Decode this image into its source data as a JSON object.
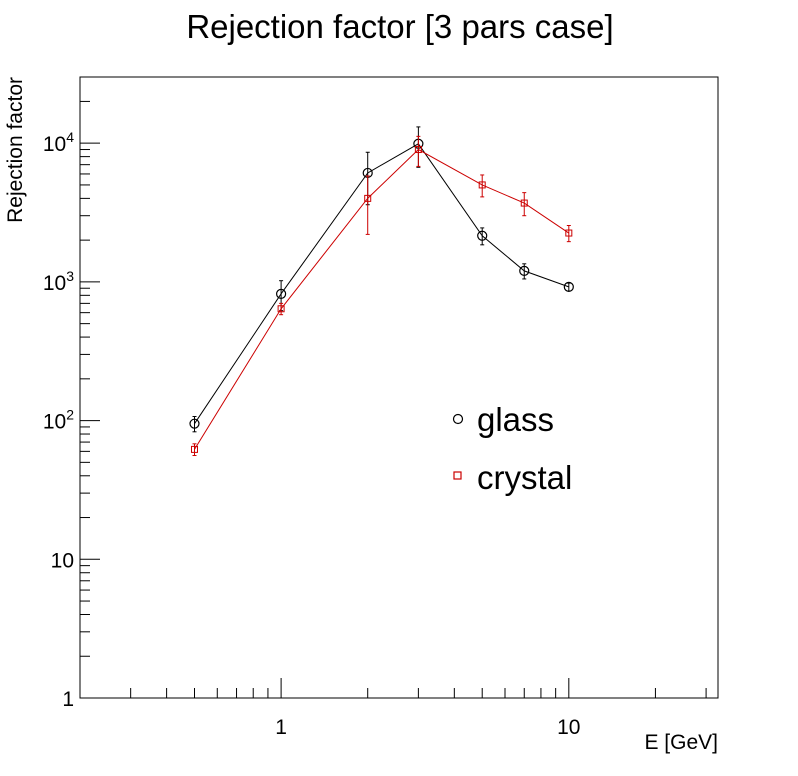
{
  "chart_data": {
    "type": "line",
    "title": "Rejection factor [3 pars case]",
    "xlabel": "E [GeV]",
    "ylabel": "Rejection factor",
    "xscale": "log",
    "yscale": "log",
    "xlim": [
      0.2,
      33
    ],
    "ylim": [
      1,
      30000
    ],
    "x_tick_labels": [
      {
        "value": 1,
        "label": "1"
      },
      {
        "value": 10,
        "label": "10"
      }
    ],
    "y_tick_labels": [
      {
        "value": 1,
        "base": "1",
        "exp": ""
      },
      {
        "value": 10,
        "base": "10",
        "exp": ""
      },
      {
        "value": 100,
        "base": "10",
        "exp": "2"
      },
      {
        "value": 1000,
        "base": "10",
        "exp": "3"
      },
      {
        "value": 10000,
        "base": "10",
        "exp": "4"
      }
    ],
    "grid": false,
    "legend_position": "center-right",
    "series": [
      {
        "name": "glass",
        "color": "#000000",
        "marker": "circle",
        "points": [
          {
            "x": 0.5,
            "y": 95,
            "err": 12
          },
          {
            "x": 1,
            "y": 820,
            "err": 200
          },
          {
            "x": 2,
            "y": 6100,
            "err": 2500
          },
          {
            "x": 3,
            "y": 9900,
            "err": 3200
          },
          {
            "x": 5,
            "y": 2150,
            "err": 300
          },
          {
            "x": 7,
            "y": 1200,
            "err": 150
          },
          {
            "x": 10,
            "y": 920,
            "err": 60
          }
        ]
      },
      {
        "name": "crystal",
        "color": "#cc0000",
        "marker": "square",
        "points": [
          {
            "x": 0.5,
            "y": 62,
            "err": 6
          },
          {
            "x": 1,
            "y": 640,
            "err": 60
          },
          {
            "x": 2,
            "y": 4000,
            "err": 1800
          },
          {
            "x": 3,
            "y": 9000,
            "err": 2200
          },
          {
            "x": 5,
            "y": 5000,
            "err": 900
          },
          {
            "x": 7,
            "y": 3700,
            "err": 700
          },
          {
            "x": 10,
            "y": 2250,
            "err": 300
          }
        ]
      }
    ]
  }
}
